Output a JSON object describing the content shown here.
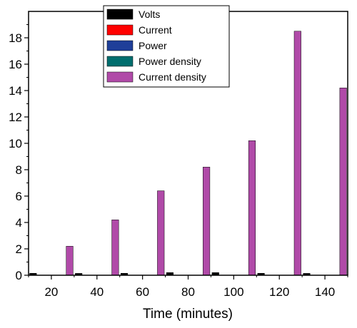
{
  "chart_data": {
    "type": "bar",
    "title": "",
    "xlabel": "Time (minutes)",
    "ylabel": "",
    "categories": [
      "20",
      "40",
      "60",
      "80",
      "100",
      "120",
      "140"
    ],
    "x_tick_labels": [
      "20",
      "40",
      "60",
      "80",
      "100",
      "120",
      "140"
    ],
    "y_tick_labels": [
      "0",
      "2",
      "4",
      "6",
      "8",
      "10",
      "12",
      "14",
      "16",
      "18"
    ],
    "xlim": [
      10,
      150
    ],
    "ylim": [
      0,
      20
    ],
    "grid": false,
    "legend_position": "top",
    "series": [
      {
        "name": "Volts",
        "color": "#000000",
        "values": [
          0.15,
          0.14,
          0.15,
          0.2,
          0.2,
          0.15,
          0.14
        ]
      },
      {
        "name": "Current",
        "color": "#ff0000",
        "values": [
          0,
          0,
          0,
          0,
          0,
          0,
          0
        ]
      },
      {
        "name": "Power",
        "color": "#1f3f99",
        "values": [
          0,
          0,
          0,
          0,
          0,
          0,
          0
        ]
      },
      {
        "name": "Power density",
        "color": "#006e6e",
        "values": [
          0,
          0,
          0,
          0,
          0,
          0,
          0
        ]
      },
      {
        "name": "Current density",
        "color": "#b04aa8",
        "values": [
          2.2,
          4.2,
          6.4,
          8.2,
          10.2,
          18.5,
          14.2
        ]
      }
    ]
  }
}
